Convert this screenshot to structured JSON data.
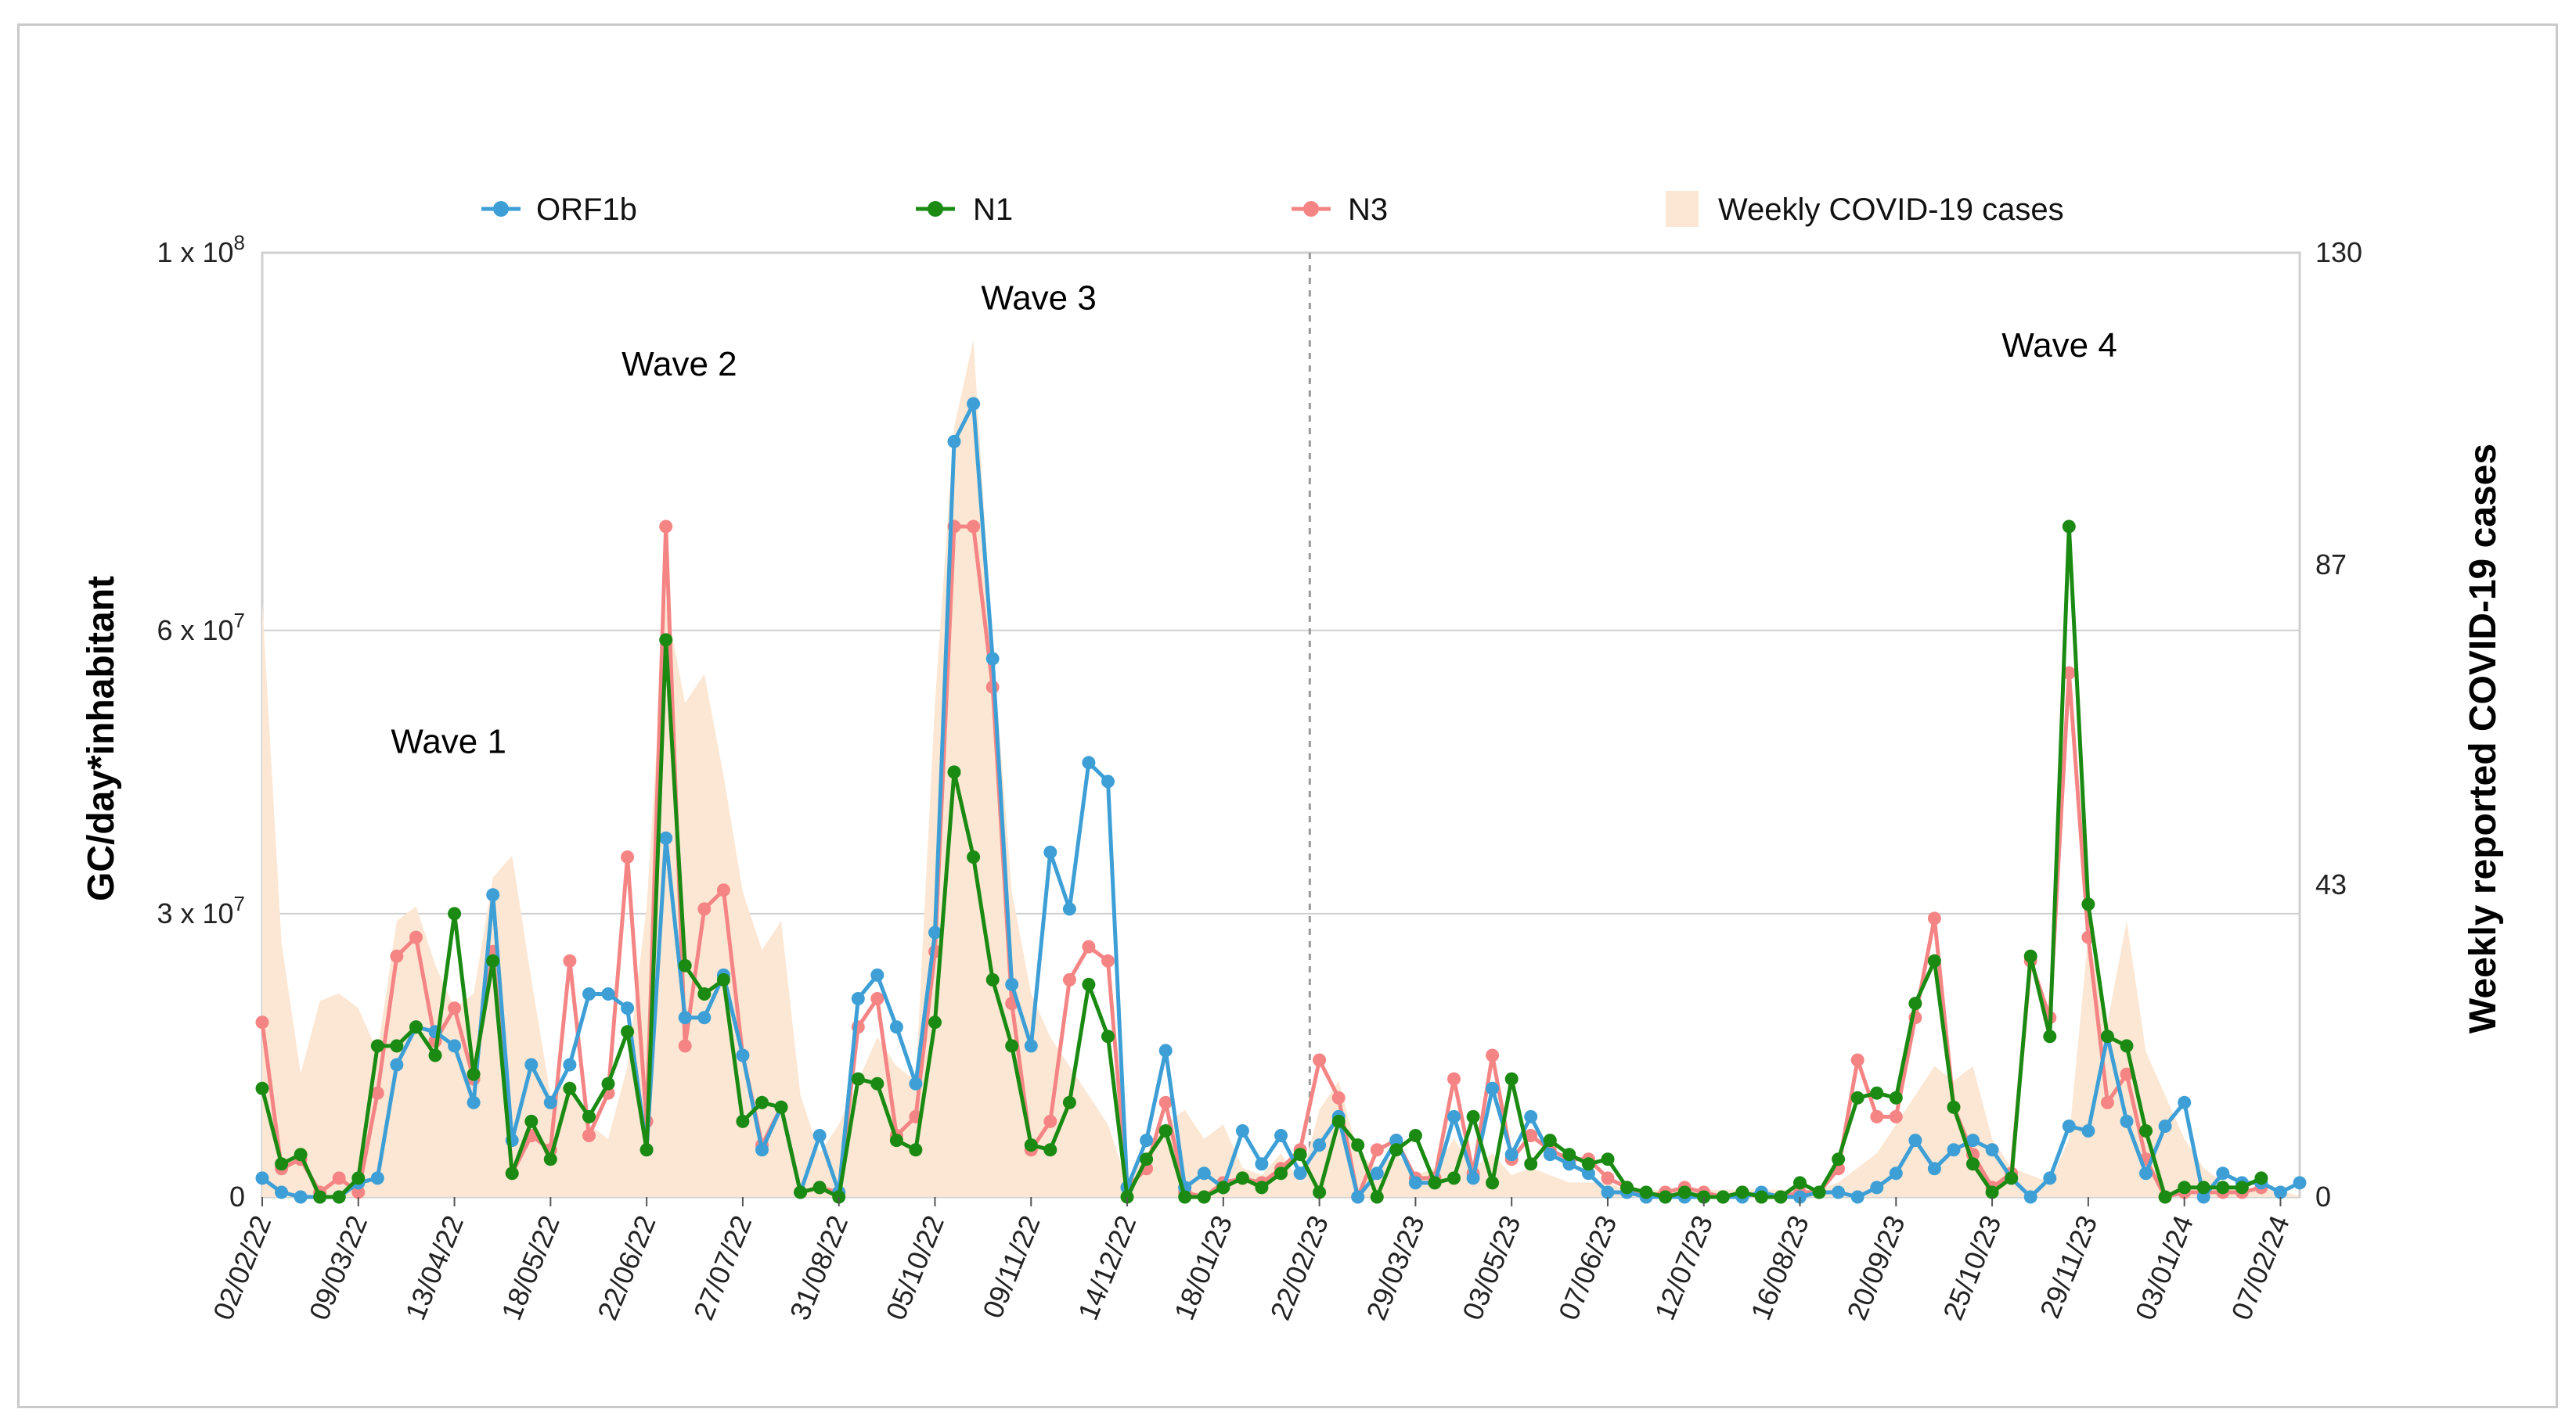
{
  "chart_data": {
    "type": "line",
    "title": "",
    "xlabel": "",
    "ylabel": "GC/day*inhabitant",
    "y2label": "Weekly reported COVID-19 cases",
    "ylim": [
      0,
      100000000
    ],
    "y2lim": [
      0,
      130
    ],
    "grid": true,
    "legend_position": "top",
    "y_tick_labels": [
      {
        "value": 0,
        "base": "0",
        "exp": ""
      },
      {
        "value": 30000000,
        "base": "3 x 10",
        "exp": "7"
      },
      {
        "value": 60000000,
        "base": "6 x 10",
        "exp": "7"
      },
      {
        "value": 100000000,
        "base": "1 x 10",
        "exp": "8"
      }
    ],
    "y2_tick_labels": [
      {
        "value": 0,
        "label": "0"
      },
      {
        "value": 43,
        "label": "43"
      },
      {
        "value": 87,
        "label": "87"
      },
      {
        "value": 130,
        "label": "130"
      }
    ],
    "x_tick_labels": [
      "02/02/22",
      "09/03/22",
      "13/04/22",
      "18/05/22",
      "22/06/22",
      "27/07/22",
      "31/08/22",
      "05/10/22",
      "09/11/22",
      "14/12/22",
      "18/01/23",
      "22/02/23",
      "29/03/23",
      "03/05/23",
      "07/06/23",
      "12/07/23",
      "16/08/23",
      "20/09/23",
      "25/10/23",
      "29/11/23",
      "03/01/24",
      "07/02/24"
    ],
    "x_tick_index": [
      0,
      5,
      10,
      15,
      20,
      25,
      30,
      35,
      40,
      45,
      50,
      55,
      60,
      65,
      70,
      75,
      80,
      85,
      90,
      95,
      100,
      105
    ],
    "divider_index": 54.5,
    "annotations": [
      {
        "text": "Wave 1",
        "index": 9.7,
        "y": 47000000
      },
      {
        "text": "Wave 2",
        "index": 21.7,
        "y": 87000000
      },
      {
        "text": "Wave 3",
        "index": 40.4,
        "y": 94000000
      },
      {
        "text": "Wave 4",
        "index": 93.5,
        "y": 89000000
      }
    ],
    "series": [
      {
        "name": "ORF1b",
        "color": "#3d9fd6",
        "values": [
          2,
          0.5,
          0,
          0,
          0,
          1.5,
          2,
          14,
          18,
          17.5,
          16,
          10,
          32,
          6,
          14,
          10,
          14,
          21.5,
          21.5,
          20,
          5,
          38,
          19,
          19,
          23.5,
          15,
          5,
          9.5,
          0.5,
          6.5,
          0.5,
          21,
          23.5,
          18,
          12,
          28,
          80,
          84,
          57,
          22.5,
          16,
          36.5,
          30.5,
          46,
          44,
          1,
          6,
          15.5,
          1,
          2.5,
          1,
          7,
          3.5,
          6.5,
          2.5,
          5.5,
          8.5,
          0,
          2.5,
          6,
          1.5,
          1.5,
          8.5,
          2,
          11.5,
          4.5,
          8.5,
          4.5,
          3.5,
          2.5,
          0.5,
          0.5,
          0,
          0,
          0,
          0,
          0,
          0,
          0.5,
          0,
          0,
          0.5,
          0.5,
          0,
          1,
          2.5,
          6,
          3,
          5,
          6,
          5,
          2,
          0,
          2,
          7.5,
          7,
          17,
          8,
          2.5,
          7.5,
          10,
          0,
          2.5,
          1.5,
          1.5,
          0.5,
          1.5
        ]
      },
      {
        "name": "N1",
        "color": "#1a8a12",
        "values": [
          11.5,
          3.5,
          4.5,
          0,
          0,
          2,
          16,
          16,
          18,
          15,
          30,
          13,
          25,
          2.5,
          8,
          4,
          11.5,
          8.5,
          12,
          17.5,
          5,
          59,
          24.5,
          21.5,
          23,
          8,
          10,
          9.5,
          0.5,
          1,
          0,
          12.5,
          12,
          6,
          5,
          18.5,
          45,
          36,
          23,
          16,
          5.5,
          5,
          10,
          22.5,
          17,
          0,
          4,
          7,
          0,
          0,
          1,
          2,
          1,
          2.5,
          4.5,
          0.5,
          8,
          5.5,
          0,
          5,
          6.5,
          1.5,
          2,
          8.5,
          1.5,
          12.5,
          3.5,
          6,
          4.5,
          3.5,
          4,
          1,
          0.5,
          0,
          0.5,
          0,
          0,
          0.5,
          0,
          0,
          1.5,
          0.5,
          4,
          10.5,
          11,
          10.5,
          20.5,
          25,
          9.5,
          3.5,
          0.5,
          2,
          25.5,
          17,
          71,
          31,
          17,
          16,
          7,
          0,
          1,
          1,
          1,
          1,
          2
        ]
      },
      {
        "name": "N3",
        "color": "#f58585",
        "values": [
          18.5,
          3,
          4,
          0.5,
          2,
          0.5,
          11,
          25.5,
          27.5,
          16.5,
          20,
          12.5,
          26,
          2.5,
          6.5,
          5,
          25,
          6.5,
          11,
          36,
          8,
          71,
          16,
          30.5,
          32.5,
          15,
          5.5,
          9.5,
          0.5,
          1,
          0.5,
          18,
          21,
          6.5,
          8.5,
          26,
          71,
          71,
          54,
          20.5,
          5,
          8,
          23,
          26.5,
          25,
          1,
          3,
          10,
          0.5,
          0,
          1.5,
          2,
          1.5,
          3,
          5,
          14.5,
          10.5,
          0,
          5,
          6,
          2,
          2,
          12.5,
          2.5,
          15,
          4,
          6.5,
          5,
          4,
          4,
          2,
          1,
          0,
          0.5,
          1,
          0.5,
          0,
          0.5,
          0,
          0,
          0.5,
          0.5,
          3,
          14.5,
          8.5,
          8.5,
          19,
          29.5,
          9.5,
          4.5,
          1,
          2.5,
          25,
          19,
          55.5,
          27.5,
          10,
          13,
          4,
          0,
          0.5,
          0.5,
          0.5,
          0.5,
          1
        ]
      },
      {
        "name": "Weekly COVID-19 cases",
        "color": "#fbe7d3",
        "values": [
          82,
          35,
          17,
          27,
          28,
          26,
          20,
          38,
          40,
          32,
          26,
          28,
          44,
          47,
          30,
          14,
          16,
          10,
          8,
          18,
          40,
          82,
          68,
          72,
          58,
          42,
          34,
          38,
          14,
          6,
          10,
          16,
          22,
          18,
          16,
          68,
          106,
          118,
          76,
          42,
          28,
          22,
          18,
          14,
          10,
          2,
          6,
          10,
          12,
          8,
          10,
          4,
          3,
          6,
          2,
          12,
          16,
          6,
          4,
          6,
          3,
          4,
          8,
          4,
          6,
          3,
          4,
          3,
          2,
          2,
          2,
          1,
          1,
          1,
          1,
          1,
          1,
          1,
          1,
          1,
          1,
          1,
          2,
          4,
          6,
          10,
          14,
          18,
          16,
          18,
          8,
          4,
          3,
          2,
          8,
          36,
          24,
          38,
          20,
          14,
          8,
          4,
          2,
          1,
          1,
          1
        ]
      }
    ]
  }
}
